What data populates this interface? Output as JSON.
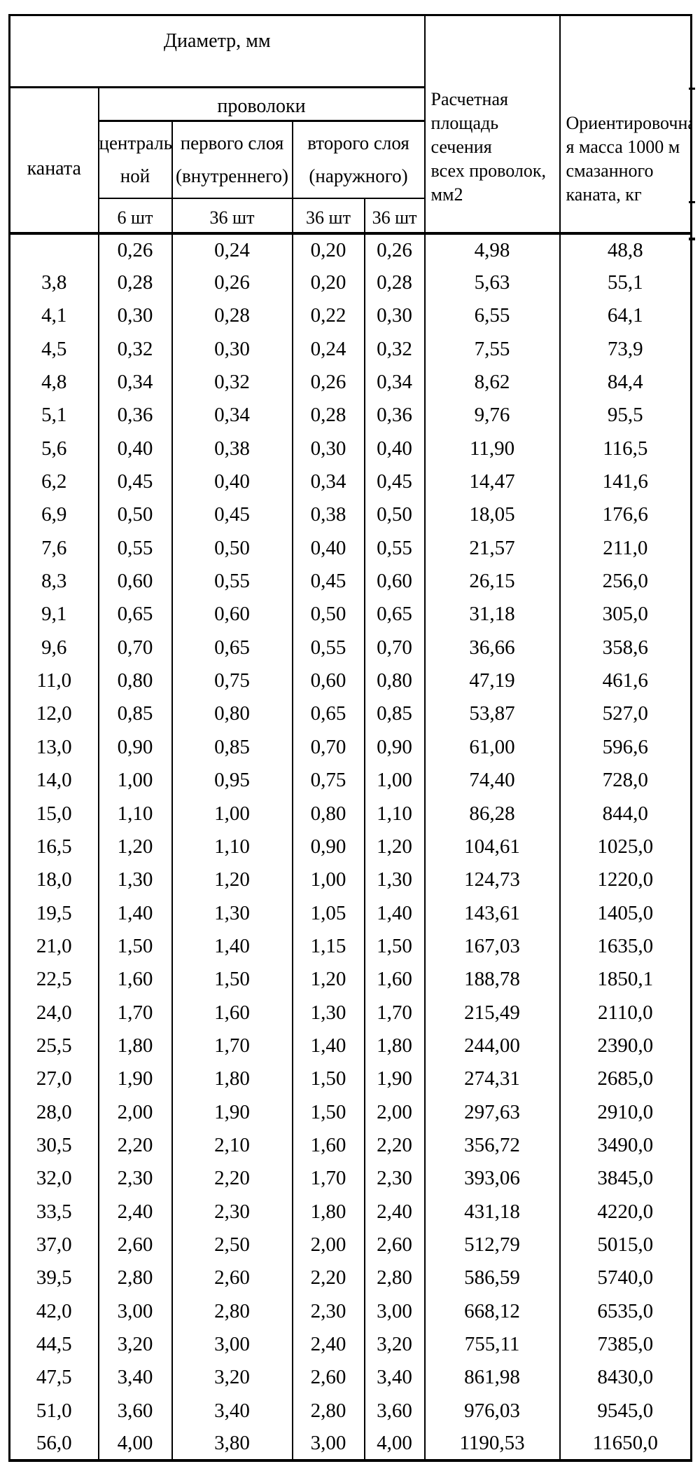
{
  "table": {
    "header": {
      "diameter_group": "Диаметр, мм",
      "rope": "каната",
      "wires_group": "проволоки",
      "central": "централь\nной",
      "first_layer": "первого слоя\n(внутреннего)",
      "second_layer": "второго слоя\n(наружного)",
      "counts": [
        "6 шт",
        "36 шт",
        "36 шт",
        "36 шт"
      ],
      "area": "Расчетная\nплощадь сечения\nвсех проволок,\nмм2",
      "mass": "Ориентировочна\nя масса 1000 м\nсмазанного\nканата, кг"
    },
    "rows": [
      [
        "",
        "0,26",
        "0,24",
        "0,20",
        "0,26",
        "4,98",
        "48,8"
      ],
      [
        "3,8",
        "0,28",
        "0,26",
        "0,20",
        "0,28",
        "5,63",
        "55,1"
      ],
      [
        "4,1",
        "0,30",
        "0,28",
        "0,22",
        "0,30",
        "6,55",
        "64,1"
      ],
      [
        "4,5",
        "0,32",
        "0,30",
        "0,24",
        "0,32",
        "7,55",
        "73,9"
      ],
      [
        "4,8",
        "0,34",
        "0,32",
        "0,26",
        "0,34",
        "8,62",
        "84,4"
      ],
      [
        "5,1",
        "0,36",
        "0,34",
        "0,28",
        "0,36",
        "9,76",
        "95,5"
      ],
      [
        "5,6",
        "0,40",
        "0,38",
        "0,30",
        "0,40",
        "11,90",
        "116,5"
      ],
      [
        "6,2",
        "0,45",
        "0,40",
        "0,34",
        "0,45",
        "14,47",
        "141,6"
      ],
      [
        "6,9",
        "0,50",
        "0,45",
        "0,38",
        "0,50",
        "18,05",
        "176,6"
      ],
      [
        "7,6",
        "0,55",
        "0,50",
        "0,40",
        "0,55",
        "21,57",
        "211,0"
      ],
      [
        "8,3",
        "0,60",
        "0,55",
        "0,45",
        "0,60",
        "26,15",
        "256,0"
      ],
      [
        "9,1",
        "0,65",
        "0,60",
        "0,50",
        "0,65",
        "31,18",
        "305,0"
      ],
      [
        "9,6",
        "0,70",
        "0,65",
        "0,55",
        "0,70",
        "36,66",
        "358,6"
      ],
      [
        "11,0",
        "0,80",
        "0,75",
        "0,60",
        "0,80",
        "47,19",
        "461,6"
      ],
      [
        "12,0",
        "0,85",
        "0,80",
        "0,65",
        "0,85",
        "53,87",
        "527,0"
      ],
      [
        "13,0",
        "0,90",
        "0,85",
        "0,70",
        "0,90",
        "61,00",
        "596,6"
      ],
      [
        "14,0",
        "1,00",
        "0,95",
        "0,75",
        "1,00",
        "74,40",
        "728,0"
      ],
      [
        "15,0",
        "1,10",
        "1,00",
        "0,80",
        "1,10",
        "86,28",
        "844,0"
      ],
      [
        "16,5",
        "1,20",
        "1,10",
        "0,90",
        "1,20",
        "104,61",
        "1025,0"
      ],
      [
        "18,0",
        "1,30",
        "1,20",
        "1,00",
        "1,30",
        "124,73",
        "1220,0"
      ],
      [
        "19,5",
        "1,40",
        "1,30",
        "1,05",
        "1,40",
        "143,61",
        "1405,0"
      ],
      [
        "21,0",
        "1,50",
        "1,40",
        "1,15",
        "1,50",
        "167,03",
        "1635,0"
      ],
      [
        "22,5",
        "1,60",
        "1,50",
        "1,20",
        "1,60",
        "188,78",
        "1850,1"
      ],
      [
        "24,0",
        "1,70",
        "1,60",
        "1,30",
        "1,70",
        "215,49",
        "2110,0"
      ],
      [
        "25,5",
        "1,80",
        "1,70",
        "1,40",
        "1,80",
        "244,00",
        "2390,0"
      ],
      [
        "27,0",
        "1,90",
        "1,80",
        "1,50",
        "1,90",
        "274,31",
        "2685,0"
      ],
      [
        "28,0",
        "2,00",
        "1,90",
        "1,50",
        "2,00",
        "297,63",
        "2910,0"
      ],
      [
        "30,5",
        "2,20",
        "2,10",
        "1,60",
        "2,20",
        "356,72",
        "3490,0"
      ],
      [
        "32,0",
        "2,30",
        "2,20",
        "1,70",
        "2,30",
        "393,06",
        "3845,0"
      ],
      [
        "33,5",
        "2,40",
        "2,30",
        "1,80",
        "2,40",
        "431,18",
        "4220,0"
      ],
      [
        "37,0",
        "2,60",
        "2,50",
        "2,00",
        "2,60",
        "512,79",
        "5015,0"
      ],
      [
        "39,5",
        "2,80",
        "2,60",
        "2,20",
        "2,80",
        "586,59",
        "5740,0"
      ],
      [
        "42,0",
        "3,00",
        "2,80",
        "2,30",
        "3,00",
        "668,12",
        "6535,0"
      ],
      [
        "44,5",
        "3,20",
        "3,00",
        "2,40",
        "3,20",
        "755,11",
        "7385,0"
      ],
      [
        "47,5",
        "3,40",
        "3,20",
        "2,60",
        "3,40",
        "861,98",
        "8430,0"
      ],
      [
        "51,0",
        "3,60",
        "3,40",
        "2,80",
        "3,60",
        "976,03",
        "9545,0"
      ],
      [
        "56,0",
        "4,00",
        "3,80",
        "3,00",
        "4,00",
        "1190,53",
        "11650,0"
      ]
    ]
  }
}
